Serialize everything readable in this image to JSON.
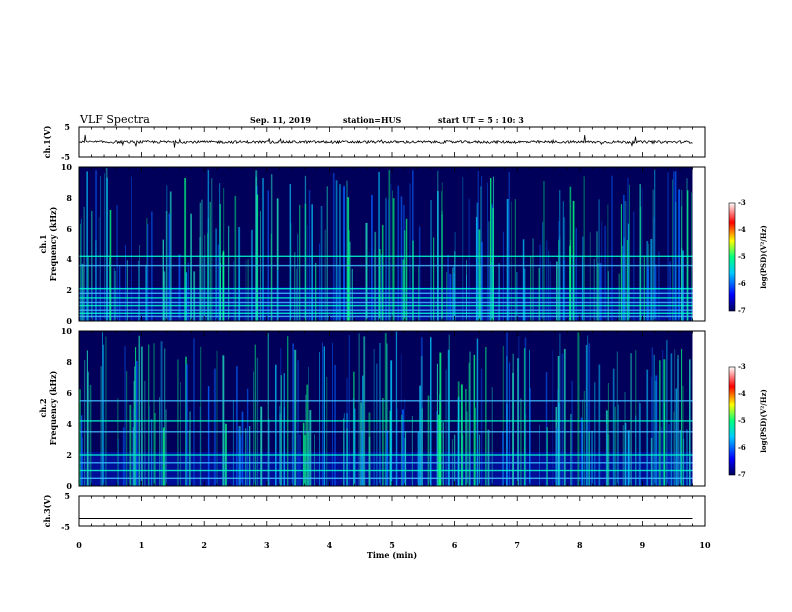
{
  "header": {
    "title": "VLF Spectra",
    "date": "Sep. 11, 2019",
    "station": "station=HUS",
    "start_time": "start  UT =   5 : 10: 3"
  },
  "colors": {
    "spectrogram_bg": "#00005a",
    "wave_line": "#000000"
  },
  "chart_data": [
    {
      "id": "ch1-waveform",
      "type": "line",
      "ylabel": "ch.1(V)",
      "ylim": [
        -5,
        5
      ],
      "yticks": [
        "5",
        "-5"
      ],
      "baseline": 0,
      "xlim": [
        0,
        10
      ],
      "grid": false
    },
    {
      "id": "ch1-spectrogram",
      "type": "heatmap",
      "ylabel_line1": "ch.1",
      "ylabel_line2": "Frequency  (kHz)",
      "ylim": [
        0,
        10
      ],
      "yticks": [
        "0",
        "2",
        "4",
        "6",
        "8",
        "10"
      ],
      "xlim": [
        0,
        10
      ],
      "data_end_min": 9.8,
      "horizontal_lines_khz": [
        0.3,
        0.5,
        0.7,
        1.0,
        1.2,
        1.5,
        1.8,
        2.1,
        3.6,
        4.2
      ],
      "colorbar": {
        "label": "log(PSD)(V²/Hz)",
        "range": [
          -7,
          -3
        ],
        "ticks": [
          "-3",
          "-4",
          "-5",
          "-6",
          "-7"
        ],
        "colormap": [
          "#00005a",
          "#0000ff",
          "#00c8ff",
          "#00ff80",
          "#ffff00",
          "#ff0000",
          "#ffffff"
        ]
      }
    },
    {
      "id": "ch2-spectrogram",
      "type": "heatmap",
      "ylabel_line1": "ch.2",
      "ylabel_line2": "Frequency  (kHz)",
      "ylim": [
        0,
        10
      ],
      "yticks": [
        "0",
        "2",
        "4",
        "6",
        "8",
        "10"
      ],
      "xlim": [
        0,
        10
      ],
      "data_end_min": 9.8,
      "horizontal_lines_khz": [
        0.5,
        1.0,
        1.5,
        2.0,
        3.5,
        4.2,
        5.5
      ],
      "colorbar": {
        "label": "log(PSD)(V²/Hz)",
        "range": [
          -7,
          -3
        ],
        "ticks": [
          "-3",
          "-4",
          "-5",
          "-6",
          "-7"
        ],
        "colormap": [
          "#00005a",
          "#0000ff",
          "#00c8ff",
          "#00ff80",
          "#ffff00",
          "#ff0000",
          "#ffffff"
        ]
      }
    },
    {
      "id": "ch3-waveform",
      "type": "line",
      "ylabel": "ch.3(V)",
      "ylim": [
        -5,
        5
      ],
      "yticks": [
        "5",
        "-5"
      ],
      "baseline": -2.5,
      "xlim": [
        0,
        10
      ],
      "grid": false
    }
  ],
  "xaxis": {
    "label": "Time  (min)",
    "ticks": [
      "0",
      "1",
      "2",
      "3",
      "4",
      "5",
      "6",
      "7",
      "8",
      "9",
      "10"
    ]
  }
}
